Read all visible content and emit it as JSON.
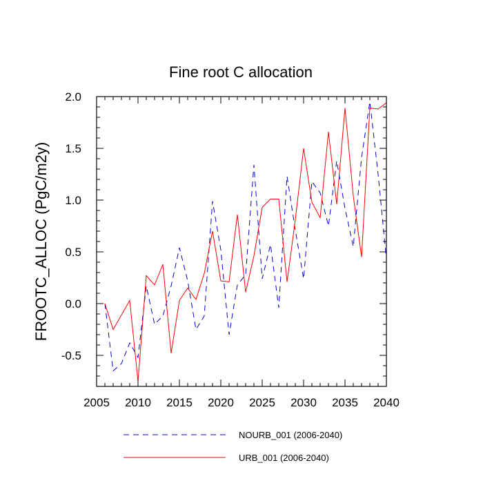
{
  "chart_data": {
    "type": "line",
    "title": "Fine root C allocation",
    "xlabel": "",
    "ylabel": "FROOTC_ALLOC  (PgC/m2y)",
    "xlim": [
      2005,
      2040
    ],
    "ylim": [
      -0.8,
      2.0
    ],
    "x_ticks": [
      2005,
      2010,
      2015,
      2020,
      2025,
      2030,
      2035,
      2040
    ],
    "y_ticks": [
      -0.5,
      0.0,
      0.5,
      1.0,
      1.5,
      2.0
    ],
    "x_tick_labels": [
      "2005",
      "2010",
      "2015",
      "2020",
      "2025",
      "2030",
      "2035",
      "2040"
    ],
    "y_tick_labels": [
      "-0.5",
      "0.0",
      "0.5",
      "1.0",
      "1.5",
      "2.0"
    ],
    "legend_position": "bottom",
    "x": [
      2006,
      2007,
      2008,
      2009,
      2010,
      2011,
      2012,
      2013,
      2014,
      2015,
      2016,
      2017,
      2018,
      2019,
      2020,
      2021,
      2022,
      2023,
      2024,
      2025,
      2026,
      2027,
      2028,
      2029,
      2030,
      2031,
      2032,
      2033,
      2034,
      2035,
      2036,
      2037,
      2038,
      2039,
      2040
    ],
    "series": [
      {
        "name": "NOURB_001 (2006-2040)",
        "color": "#0000cc",
        "dash": "dashed",
        "values": [
          0.0,
          -0.65,
          -0.58,
          -0.38,
          -0.52,
          0.17,
          -0.2,
          -0.12,
          0.17,
          0.54,
          0.22,
          -0.25,
          -0.12,
          0.99,
          0.52,
          -0.3,
          0.18,
          0.28,
          1.34,
          0.24,
          0.57,
          -0.04,
          1.23,
          0.71,
          0.24,
          1.18,
          1.07,
          0.75,
          1.38,
          0.92,
          0.55,
          1.41,
          1.95,
          1.25,
          0.43
        ]
      },
      {
        "name": "URB_001 (2006-2040)",
        "color": "#ff0000",
        "dash": "solid",
        "values": [
          0.0,
          -0.25,
          -0.11,
          0.03,
          -0.75,
          0.27,
          0.18,
          0.38,
          -0.48,
          0.03,
          0.15,
          0.04,
          0.29,
          0.7,
          0.22,
          0.21,
          0.86,
          0.11,
          0.46,
          0.93,
          1.01,
          1.01,
          0.21,
          0.81,
          1.5,
          0.98,
          0.83,
          1.66,
          0.96,
          1.89,
          1.04,
          0.45,
          1.89,
          1.88,
          1.94
        ]
      }
    ]
  }
}
